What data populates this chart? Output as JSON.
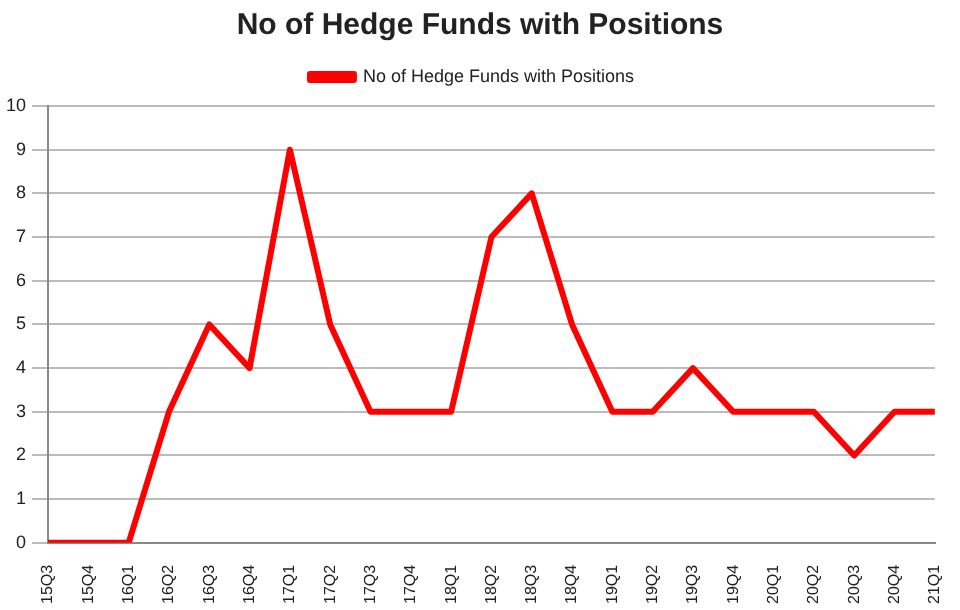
{
  "chart_data": {
    "type": "line",
    "title": "No of Hedge Funds with Positions",
    "categories": [
      "15Q3",
      "15Q4",
      "16Q1",
      "16Q2",
      "16Q3",
      "16Q4",
      "17Q1",
      "17Q2",
      "17Q3",
      "17Q4",
      "18Q1",
      "18Q2",
      "18Q3",
      "18Q4",
      "19Q1",
      "19Q2",
      "19Q3",
      "19Q4",
      "20Q1",
      "20Q2",
      "20Q3",
      "20Q4",
      "21Q1"
    ],
    "series": [
      {
        "name": "No of Hedge Funds with Positions",
        "color": "#ff0000",
        "values": [
          0,
          0,
          0,
          3,
          5,
          4,
          9,
          5,
          3,
          3,
          3,
          7,
          8,
          5,
          3,
          3,
          4,
          3,
          3,
          3,
          2,
          3,
          3
        ]
      }
    ],
    "ylim": [
      0,
      10
    ],
    "yticks": [
      0,
      1,
      2,
      3,
      4,
      5,
      6,
      7,
      8,
      9,
      10
    ],
    "grid": "y",
    "legend": "top",
    "marker": "none",
    "line_style": "solid"
  }
}
